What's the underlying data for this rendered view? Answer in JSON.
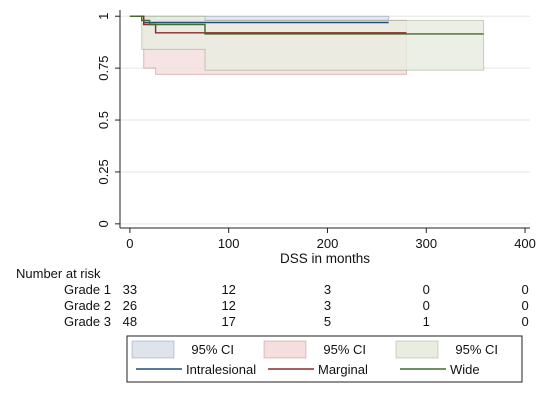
{
  "chart_data": {
    "type": "line",
    "xlabel": "DSS in months",
    "ylabel": "",
    "xlim": [
      -10,
      405
    ],
    "ylim": [
      -0.02,
      1.03
    ],
    "x_ticks": [
      0,
      100,
      200,
      300,
      400
    ],
    "y_ticks": [
      0,
      0.25,
      0.5,
      0.75,
      1
    ],
    "y_tick_labels": [
      "0",
      "0.25",
      "0.5",
      "0.75",
      "1"
    ],
    "grid": "horizontal",
    "series": [
      {
        "name": "Intralesional",
        "color": "#1f4f7a",
        "ci_label": "95% CI",
        "ci_color": "#dfe3ec",
        "points": [
          [
            0,
            1.0
          ],
          [
            14,
            1.0
          ],
          [
            14,
            0.97
          ],
          [
            262,
            0.97
          ]
        ],
        "ci_upper": [
          [
            14,
            1.0
          ],
          [
            262,
            1.0
          ]
        ],
        "ci_lower": [
          [
            14,
            0.96
          ],
          [
            262,
            0.96
          ]
        ]
      },
      {
        "name": "Marginal",
        "color": "#8c2a2a",
        "ci_label": "95% CI",
        "ci_color": "#f4dede",
        "points": [
          [
            0,
            1.0
          ],
          [
            14,
            1.0
          ],
          [
            14,
            0.96
          ],
          [
            26,
            0.96
          ],
          [
            26,
            0.92
          ],
          [
            280,
            0.92
          ]
        ],
        "ci_upper": [
          [
            14,
            0.99
          ],
          [
            26,
            0.99
          ],
          [
            26,
            0.98
          ],
          [
            280,
            0.98
          ]
        ],
        "ci_lower": [
          [
            14,
            0.75
          ],
          [
            26,
            0.75
          ],
          [
            26,
            0.72
          ],
          [
            280,
            0.72
          ]
        ]
      },
      {
        "name": "Wide",
        "color": "#3f6d2a",
        "ci_label": "95% CI",
        "ci_color": "#e9ece0",
        "points": [
          [
            0,
            1.0
          ],
          [
            12,
            1.0
          ],
          [
            12,
            0.98
          ],
          [
            20,
            0.98
          ],
          [
            20,
            0.96
          ],
          [
            76,
            0.96
          ],
          [
            76,
            0.915
          ],
          [
            358,
            0.915
          ]
        ],
        "ci_upper": [
          [
            12,
            1.0
          ],
          [
            76,
            1.0
          ],
          [
            76,
            0.98
          ],
          [
            358,
            0.98
          ]
        ],
        "ci_lower": [
          [
            12,
            0.84
          ],
          [
            76,
            0.84
          ],
          [
            76,
            0.74
          ],
          [
            358,
            0.74
          ]
        ]
      }
    ]
  },
  "risk_table": {
    "title": "Number at risk",
    "rows": [
      {
        "label": "Grade 1",
        "values": [
          "33",
          "12",
          "3",
          "0",
          "0"
        ]
      },
      {
        "label": "Grade 2",
        "values": [
          "26",
          "12",
          "3",
          "0",
          "0"
        ]
      },
      {
        "label": "Grade 3",
        "values": [
          "48",
          "17",
          "5",
          "1",
          "0"
        ]
      }
    ]
  }
}
